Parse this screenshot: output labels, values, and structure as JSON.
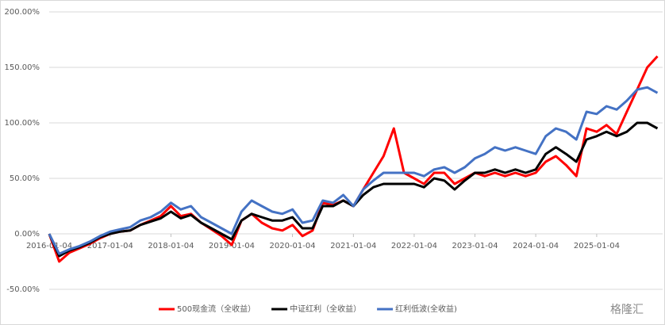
{
  "chart_data": {
    "type": "line",
    "x": [
      "2016-01-04",
      "2016-03-04",
      "2016-05-04",
      "2016-07-04",
      "2016-09-04",
      "2016-11-04",
      "2017-01-04",
      "2017-03-04",
      "2017-05-04",
      "2017-07-04",
      "2017-09-04",
      "2017-11-04",
      "2018-01-04",
      "2018-03-04",
      "2018-05-04",
      "2018-07-04",
      "2018-09-04",
      "2018-11-04",
      "2019-01-04",
      "2019-03-04",
      "2019-05-04",
      "2019-07-04",
      "2019-09-04",
      "2019-11-04",
      "2020-01-04",
      "2020-03-04",
      "2020-05-04",
      "2020-07-04",
      "2020-09-04",
      "2020-11-04",
      "2021-01-04",
      "2021-03-04",
      "2021-05-04",
      "2021-07-04",
      "2021-09-04",
      "2021-11-04",
      "2022-01-04",
      "2022-03-04",
      "2022-05-04",
      "2022-07-04",
      "2022-09-04",
      "2022-11-04",
      "2023-01-04",
      "2023-03-04",
      "2023-05-04",
      "2023-07-04",
      "2023-09-04",
      "2023-11-04",
      "2024-01-04",
      "2024-03-04",
      "2024-05-04",
      "2024-07-04",
      "2024-09-04",
      "2024-11-04",
      "2025-01-04",
      "2025-03-04",
      "2025-05-04",
      "2025-07-04",
      "2025-09-04",
      "2025-11-04",
      "2026-01-04"
    ],
    "series": [
      {
        "name": "500现金流（全收益）",
        "color": "#ff0000",
        "values": [
          0,
          -25,
          -17,
          -13,
          -9,
          -4,
          0,
          2,
          3,
          8,
          12,
          16,
          25,
          16,
          18,
          10,
          4,
          -2,
          -10,
          12,
          18,
          10,
          5,
          3,
          8,
          -2,
          3,
          28,
          26,
          30,
          25,
          40,
          55,
          70,
          95,
          55,
          50,
          45,
          55,
          55,
          45,
          50,
          55,
          52,
          55,
          52,
          55,
          52,
          55,
          65,
          70,
          62,
          52,
          95,
          92,
          98,
          90,
          110,
          130,
          150,
          160
        ]
      },
      {
        "name": "中证红利（全收益）",
        "color": "#000000",
        "values": [
          0,
          -20,
          -15,
          -12,
          -8,
          -3,
          0,
          2,
          3,
          8,
          11,
          14,
          20,
          14,
          17,
          10,
          5,
          0,
          -5,
          12,
          18,
          15,
          12,
          12,
          15,
          5,
          5,
          25,
          25,
          30,
          25,
          35,
          42,
          45,
          45,
          45,
          45,
          42,
          50,
          48,
          40,
          48,
          55,
          55,
          58,
          55,
          58,
          55,
          58,
          72,
          78,
          72,
          65,
          85,
          88,
          92,
          88,
          92,
          100,
          100,
          95
        ]
      },
      {
        "name": "红利低波(全收益)",
        "color": "#4472c4",
        "values": [
          0,
          -18,
          -14,
          -11,
          -7,
          -2,
          2,
          4,
          6,
          12,
          15,
          20,
          28,
          22,
          25,
          15,
          10,
          5,
          0,
          20,
          30,
          25,
          20,
          18,
          22,
          10,
          12,
          30,
          28,
          35,
          25,
          40,
          48,
          55,
          55,
          55,
          55,
          52,
          58,
          60,
          55,
          60,
          68,
          72,
          78,
          75,
          78,
          75,
          72,
          88,
          95,
          92,
          85,
          110,
          108,
          115,
          112,
          120,
          130,
          132,
          127
        ]
      }
    ],
    "xlim": [
      "2016-01-04",
      "2026-02-04"
    ],
    "xticks": [
      "2016-01-04",
      "2017-01-04",
      "2018-01-04",
      "2019-01-04",
      "2020-01-04",
      "2021-01-04",
      "2022-01-04",
      "2023-01-04",
      "2024-01-04",
      "2025-01-04"
    ],
    "ylim": [
      -50,
      200
    ],
    "yticks": [
      {
        "value": -50,
        "label": "-50.00%"
      },
      {
        "value": 0,
        "label": "0.00%"
      },
      {
        "value": 50,
        "label": "50.00%"
      },
      {
        "value": 100,
        "label": "100.00%"
      },
      {
        "value": 150,
        "label": "150.00%"
      },
      {
        "value": 200,
        "label": "200.00%"
      }
    ],
    "grid": true,
    "watermark": "格隆汇"
  }
}
